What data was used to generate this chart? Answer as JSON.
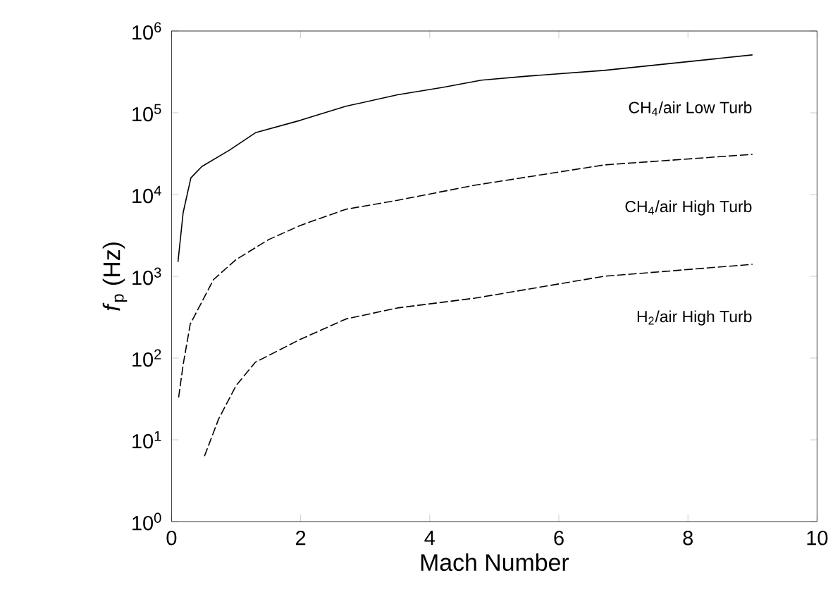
{
  "chart_data": {
    "type": "line",
    "xlabel": "Mach Number",
    "ylabel": "*f*$_{p}$ (Hz)",
    "log": "y",
    "grid": false,
    "marker": "none",
    "xlim": [
      0,
      10
    ],
    "xticks": [
      0,
      2,
      4,
      6,
      8,
      10
    ],
    "ylim": [
      1,
      1000000
    ],
    "yticks": [
      {
        "value": 1,
        "label": "10$^{0}$"
      },
      {
        "value": 10,
        "label": "10$^{1}$"
      },
      {
        "value": 100,
        "label": "10$^{2}$"
      },
      {
        "value": 1000,
        "label": "10$^{3}$"
      },
      {
        "value": 10000,
        "label": "10$^{4}$"
      },
      {
        "value": 100000,
        "label": "10$^{5}$"
      },
      {
        "value": 1000000,
        "label": "10$^{6}$"
      }
    ],
    "series": [
      {
        "name": "CH$_{4}$/air  Low  Turb",
        "color": "#000000",
        "line_style": "solid",
        "x": [
          0.1,
          0.18,
          0.3,
          0.47,
          0.9,
          1.3,
          2,
          2.7,
          3.5,
          4.2,
          4.8,
          5.5,
          6.7,
          9
        ],
        "values": [
          1500,
          6000,
          16000,
          22000,
          35000,
          57000,
          81000,
          120000,
          166000,
          204000,
          250000,
          280000,
          330000,
          510000
        ]
      },
      {
        "name": "CH$_{4}$/air  High  Turb",
        "color": "#000000",
        "line_style": "dashed",
        "x": [
          0.11,
          0.18,
          0.29,
          0.65,
          1,
          1.5,
          2,
          2.7,
          3.5,
          4.7,
          6.7,
          9
        ],
        "values": [
          33,
          83,
          260,
          910,
          1600,
          2800,
          4200,
          6600,
          8500,
          13000,
          23000,
          31000
        ]
      },
      {
        "name": "H$_{2}$/air  High  Turb",
        "color": "#000000",
        "line_style": "dashed",
        "x": [
          0.51,
          0.73,
          1,
          1.3,
          2,
          2.7,
          3.5,
          4.7,
          6.7,
          9
        ],
        "values": [
          6.3,
          18,
          46,
          89,
          170,
          300,
          410,
          540,
          1000,
          1400
        ]
      }
    ]
  }
}
